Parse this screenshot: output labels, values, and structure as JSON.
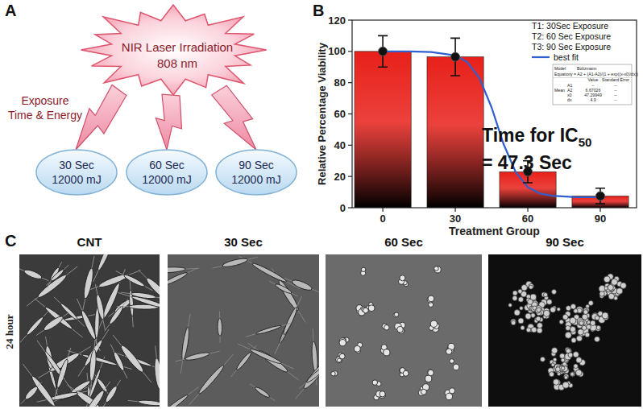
{
  "panel_labels": [
    "A",
    "B",
    "C"
  ],
  "diagram": {
    "source": [
      "NIR Laser Irradiation",
      "808 nm"
    ],
    "caption": [
      "Exposure",
      "Time & Energy"
    ],
    "nodes": [
      {
        "lines": [
          "30 Sec",
          "12000 mJ"
        ]
      },
      {
        "lines": [
          "60 Sec",
          "12000 mJ"
        ]
      },
      {
        "lines": [
          "90 Sec",
          "12000 mJ"
        ]
      }
    ]
  },
  "chart_data": {
    "type": "bar",
    "x_label": "Treatment Group",
    "y_label": "Relative Percentage Viability",
    "x": [
      0,
      30,
      60,
      90
    ],
    "xlim": [
      -12.7,
      105
    ],
    "xticks": [
      0,
      30,
      60,
      90
    ],
    "ylim": [
      0,
      120
    ],
    "yticks": [
      0,
      20,
      40,
      60,
      80,
      100,
      120
    ],
    "series": [
      {
        "type": "bar",
        "color": "#e8201a",
        "marker": "circle",
        "values": [
          100,
          96.5,
          23,
          7.5
        ],
        "errors": [
          10,
          12,
          7,
          5
        ]
      },
      {
        "name": "best fit",
        "type": "line",
        "color": "#3060d0",
        "line_style": "solid",
        "x": [
          0,
          10,
          20,
          30,
          35,
          40,
          45,
          50,
          55,
          60,
          65,
          70,
          80,
          90
        ],
        "values": [
          100,
          100,
          99.6,
          97.4,
          93,
          82.9,
          64.1,
          40.7,
          22.8,
          13.2,
          9.1,
          7.6,
          6.8,
          6.7
        ]
      }
    ],
    "legend": "top-right",
    "legend_notes": [
      "T1: 30Sec Exposure",
      "T2: 60 Sec Exposure",
      "T3: 90 Sec Exposure"
    ],
    "annotation": {
      "text": "Time for IC",
      "subscript": "50",
      "continuation": "= 47.3 Sec"
    },
    "inset": {
      "model_label": "Model",
      "model": "Boltzmann",
      "equation_label": "Equation",
      "equation": "y = A2 + (A1-A2)/(1 + exp((x-x0)/dx))",
      "columns": [
        "Value",
        "Standard Error"
      ],
      "group": "Mean",
      "rows": [
        {
          "param": "A1",
          "value": "--",
          "error": "--"
        },
        {
          "param": "A2",
          "value": "6.67026",
          "error": "--"
        },
        {
          "param": "x0",
          "value": "47.29949",
          "error": "--"
        },
        {
          "param": "dx",
          "value": "4.9",
          "error": "--"
        }
      ]
    }
  },
  "micrographs": {
    "row_label": "24 hour",
    "columns": [
      "CNT",
      "30 Sec",
      "60 Sec",
      "90 Sec"
    ]
  }
}
